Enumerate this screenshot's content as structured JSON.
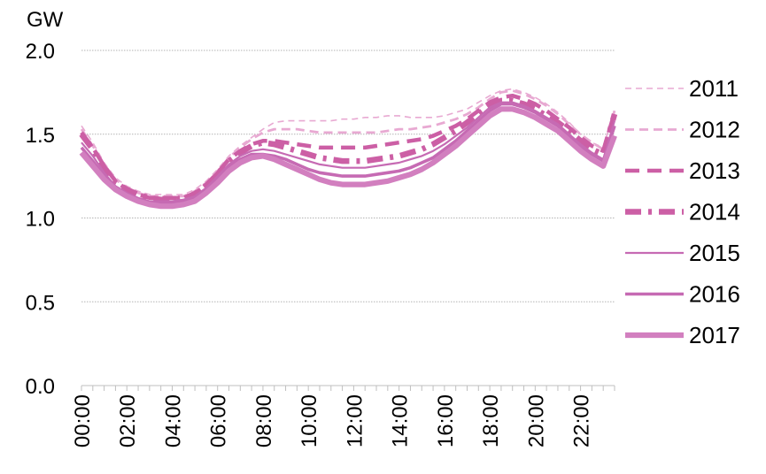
{
  "chart_data": {
    "type": "line",
    "title": "",
    "ylabel": "GW",
    "xlabel": "",
    "ylim": [
      0,
      2.0
    ],
    "y_ticks": [
      "0.0",
      "0.5",
      "1.0",
      "1.5",
      "2.0"
    ],
    "y_tick_values": [
      0,
      0.5,
      1.0,
      1.5,
      2.0
    ],
    "x_tick_labels": [
      "00:00",
      "02:00",
      "04:00",
      "06:00",
      "08:00",
      "10:00",
      "12:00",
      "14:00",
      "16:00",
      "18:00",
      "20:00",
      "22:00"
    ],
    "x_tick_hours": [
      0,
      2,
      4,
      6,
      8,
      10,
      12,
      14,
      16,
      18,
      20,
      22
    ],
    "x_range_hours": [
      0,
      23.5
    ],
    "grid": "horizontal",
    "legend_position": "right",
    "x_hours": [
      0,
      0.5,
      1,
      1.5,
      2,
      2.5,
      3,
      3.5,
      4,
      4.5,
      5,
      5.5,
      6,
      6.5,
      7,
      7.5,
      8,
      8.5,
      9,
      9.5,
      10,
      10.5,
      11,
      11.5,
      12,
      12.5,
      13,
      13.5,
      14,
      14.5,
      15,
      15.5,
      16,
      16.5,
      17,
      17.5,
      18,
      18.5,
      19,
      19.5,
      20,
      20.5,
      21,
      21.5,
      22,
      22.5,
      23,
      23.5
    ],
    "series": [
      {
        "name": "2011",
        "color": "#e8a9d2",
        "style": "dash-thin",
        "values": [
          1.55,
          1.45,
          1.33,
          1.24,
          1.19,
          1.16,
          1.14,
          1.14,
          1.14,
          1.14,
          1.17,
          1.22,
          1.29,
          1.37,
          1.43,
          1.48,
          1.53,
          1.57,
          1.58,
          1.58,
          1.58,
          1.58,
          1.58,
          1.59,
          1.59,
          1.6,
          1.6,
          1.61,
          1.61,
          1.6,
          1.6,
          1.6,
          1.61,
          1.63,
          1.65,
          1.69,
          1.73,
          1.76,
          1.77,
          1.75,
          1.72,
          1.68,
          1.63,
          1.57,
          1.5,
          1.45,
          1.42,
          1.65
        ]
      },
      {
        "name": "2012",
        "color": "#e8a9d2",
        "style": "dash-medium",
        "values": [
          1.53,
          1.43,
          1.32,
          1.23,
          1.18,
          1.15,
          1.13,
          1.13,
          1.13,
          1.13,
          1.16,
          1.21,
          1.28,
          1.36,
          1.42,
          1.47,
          1.51,
          1.53,
          1.53,
          1.53,
          1.52,
          1.51,
          1.51,
          1.51,
          1.51,
          1.51,
          1.51,
          1.52,
          1.53,
          1.53,
          1.54,
          1.55,
          1.57,
          1.59,
          1.62,
          1.66,
          1.71,
          1.75,
          1.76,
          1.74,
          1.71,
          1.67,
          1.62,
          1.56,
          1.5,
          1.45,
          1.41,
          1.64
        ]
      },
      {
        "name": "2013",
        "color": "#cc5fa5",
        "style": "dash-thick",
        "values": [
          1.51,
          1.42,
          1.31,
          1.22,
          1.17,
          1.14,
          1.12,
          1.12,
          1.12,
          1.12,
          1.15,
          1.2,
          1.27,
          1.35,
          1.4,
          1.44,
          1.46,
          1.46,
          1.45,
          1.44,
          1.43,
          1.42,
          1.42,
          1.42,
          1.42,
          1.42,
          1.43,
          1.44,
          1.45,
          1.46,
          1.47,
          1.49,
          1.52,
          1.55,
          1.59,
          1.64,
          1.69,
          1.72,
          1.73,
          1.71,
          1.68,
          1.64,
          1.59,
          1.54,
          1.48,
          1.43,
          1.4,
          1.63
        ]
      },
      {
        "name": "2014",
        "color": "#cc5fa5",
        "style": "dash-dot-thick",
        "values": [
          1.5,
          1.41,
          1.3,
          1.21,
          1.17,
          1.14,
          1.12,
          1.11,
          1.11,
          1.12,
          1.14,
          1.19,
          1.26,
          1.34,
          1.39,
          1.43,
          1.45,
          1.44,
          1.42,
          1.4,
          1.38,
          1.36,
          1.35,
          1.34,
          1.34,
          1.34,
          1.35,
          1.36,
          1.37,
          1.39,
          1.41,
          1.44,
          1.48,
          1.52,
          1.57,
          1.62,
          1.67,
          1.7,
          1.7,
          1.68,
          1.65,
          1.61,
          1.57,
          1.52,
          1.46,
          1.41,
          1.38,
          1.62
        ]
      },
      {
        "name": "2015",
        "color": "#c66ab3",
        "style": "solid-thin",
        "values": [
          1.45,
          1.37,
          1.27,
          1.19,
          1.15,
          1.12,
          1.1,
          1.1,
          1.1,
          1.11,
          1.13,
          1.18,
          1.25,
          1.32,
          1.37,
          1.4,
          1.41,
          1.4,
          1.38,
          1.36,
          1.34,
          1.32,
          1.31,
          1.3,
          1.3,
          1.3,
          1.31,
          1.32,
          1.33,
          1.35,
          1.37,
          1.4,
          1.44,
          1.49,
          1.54,
          1.6,
          1.66,
          1.69,
          1.69,
          1.67,
          1.64,
          1.6,
          1.56,
          1.5,
          1.44,
          1.39,
          1.35,
          1.58
        ]
      },
      {
        "name": "2016",
        "color": "#c66ab3",
        "style": "solid-medium",
        "values": [
          1.42,
          1.34,
          1.25,
          1.18,
          1.14,
          1.11,
          1.09,
          1.09,
          1.09,
          1.1,
          1.12,
          1.17,
          1.24,
          1.31,
          1.35,
          1.38,
          1.38,
          1.37,
          1.35,
          1.32,
          1.29,
          1.27,
          1.26,
          1.25,
          1.25,
          1.25,
          1.26,
          1.27,
          1.28,
          1.3,
          1.33,
          1.36,
          1.41,
          1.46,
          1.52,
          1.58,
          1.64,
          1.68,
          1.68,
          1.66,
          1.63,
          1.59,
          1.55,
          1.49,
          1.43,
          1.38,
          1.34,
          1.55
        ]
      },
      {
        "name": "2017",
        "color": "#d27fbf",
        "style": "solid-thick",
        "values": [
          1.39,
          1.31,
          1.23,
          1.17,
          1.13,
          1.1,
          1.08,
          1.07,
          1.07,
          1.08,
          1.1,
          1.15,
          1.21,
          1.28,
          1.33,
          1.36,
          1.37,
          1.35,
          1.32,
          1.29,
          1.26,
          1.23,
          1.21,
          1.2,
          1.2,
          1.2,
          1.21,
          1.22,
          1.24,
          1.26,
          1.29,
          1.33,
          1.38,
          1.43,
          1.49,
          1.55,
          1.61,
          1.65,
          1.65,
          1.63,
          1.6,
          1.56,
          1.52,
          1.46,
          1.4,
          1.35,
          1.31,
          1.49
        ]
      }
    ]
  }
}
